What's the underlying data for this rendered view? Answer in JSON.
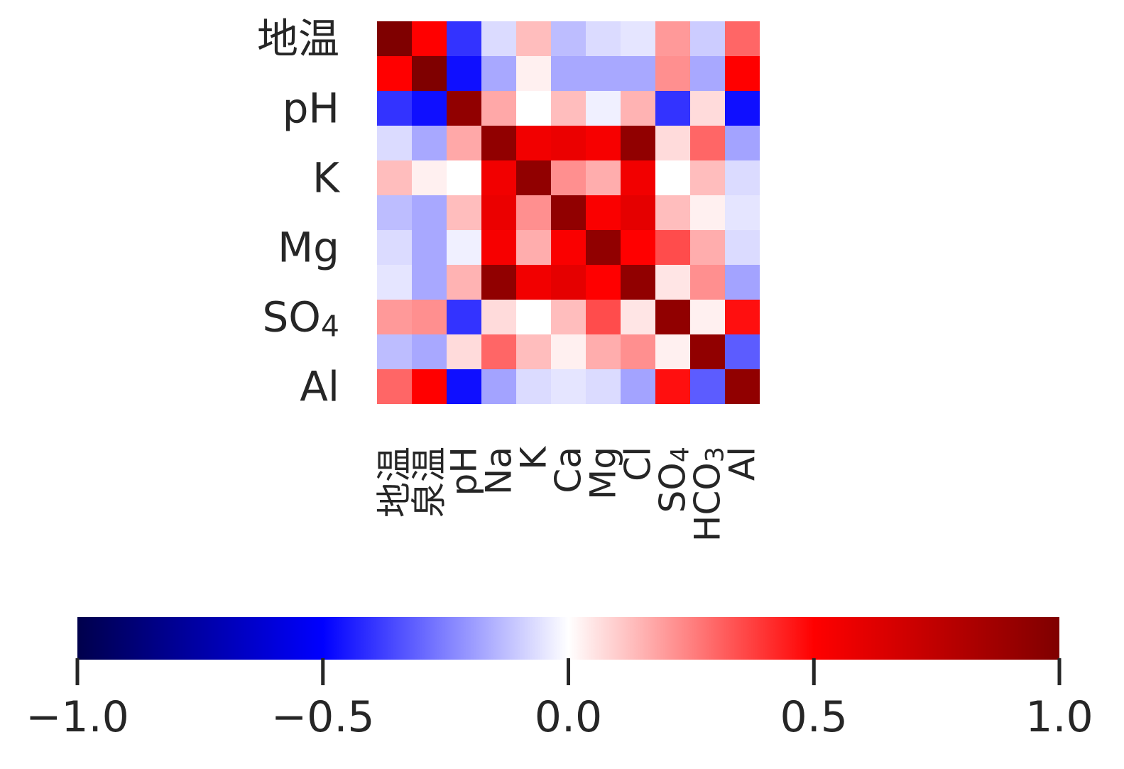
{
  "chart_data": {
    "type": "heatmap",
    "title": "",
    "xlabel": "",
    "ylabel": "",
    "x_labels": [
      "地温",
      "泉温",
      "pH",
      "Na",
      "K",
      "Ca",
      "Mg",
      "Cl",
      "SO4",
      "HCO3",
      "Al"
    ],
    "y_labels_shown": [
      {
        "row": 0,
        "text": "地温"
      },
      {
        "row": 2,
        "text": "pH"
      },
      {
        "row": 4,
        "text": "K"
      },
      {
        "row": 6,
        "text": "Mg"
      },
      {
        "row": 8,
        "text": "SO4"
      },
      {
        "row": 10,
        "text": "Al"
      }
    ],
    "values": [
      [
        1.0,
        0.5,
        -0.4,
        -0.07,
        0.13,
        -0.13,
        -0.07,
        -0.05,
        0.2,
        -0.1,
        0.3
      ],
      [
        0.5,
        1.0,
        -0.47,
        -0.17,
        0.03,
        -0.17,
        -0.17,
        -0.17,
        0.22,
        -0.17,
        0.5
      ],
      [
        -0.4,
        -0.47,
        0.93,
        0.17,
        0.0,
        0.13,
        -0.03,
        0.15,
        -0.4,
        0.07,
        -0.47
      ],
      [
        -0.07,
        -0.17,
        0.17,
        0.93,
        0.55,
        0.58,
        0.53,
        0.93,
        0.07,
        0.3,
        -0.18
      ],
      [
        0.13,
        0.03,
        0.0,
        0.55,
        0.93,
        0.22,
        0.16,
        0.55,
        0.0,
        0.13,
        -0.07
      ],
      [
        -0.13,
        -0.17,
        0.13,
        0.58,
        0.22,
        0.93,
        0.52,
        0.6,
        0.13,
        0.03,
        -0.05
      ],
      [
        -0.07,
        -0.17,
        -0.03,
        0.53,
        0.16,
        0.52,
        0.93,
        0.5,
        0.35,
        0.16,
        -0.07
      ],
      [
        -0.05,
        -0.17,
        0.15,
        0.93,
        0.55,
        0.6,
        0.5,
        0.93,
        0.05,
        0.22,
        -0.18
      ],
      [
        0.2,
        0.22,
        -0.4,
        0.07,
        0.0,
        0.13,
        0.35,
        0.05,
        0.93,
        0.03,
        0.47
      ],
      [
        -0.13,
        -0.17,
        0.07,
        0.3,
        0.13,
        0.03,
        0.16,
        0.22,
        0.03,
        0.93,
        -0.32
      ],
      [
        0.3,
        0.5,
        -0.47,
        -0.18,
        -0.07,
        -0.05,
        -0.07,
        -0.18,
        0.47,
        -0.32,
        0.93
      ]
    ],
    "colormap": "seismic",
    "color_stops": [
      "#00004c",
      "#0000ff",
      "#ffffff",
      "#ff0000",
      "#7f0000"
    ],
    "vmin": -1.0,
    "vmax": 1.0,
    "colorbar": {
      "orientation": "horizontal",
      "ticks": [
        -1.0,
        -0.5,
        0.0,
        0.5,
        1.0
      ],
      "tick_labels": [
        "−1.0",
        "−0.5",
        "0.0",
        "0.5",
        "1.0"
      ]
    },
    "grid": false,
    "text_color": "#262626"
  }
}
